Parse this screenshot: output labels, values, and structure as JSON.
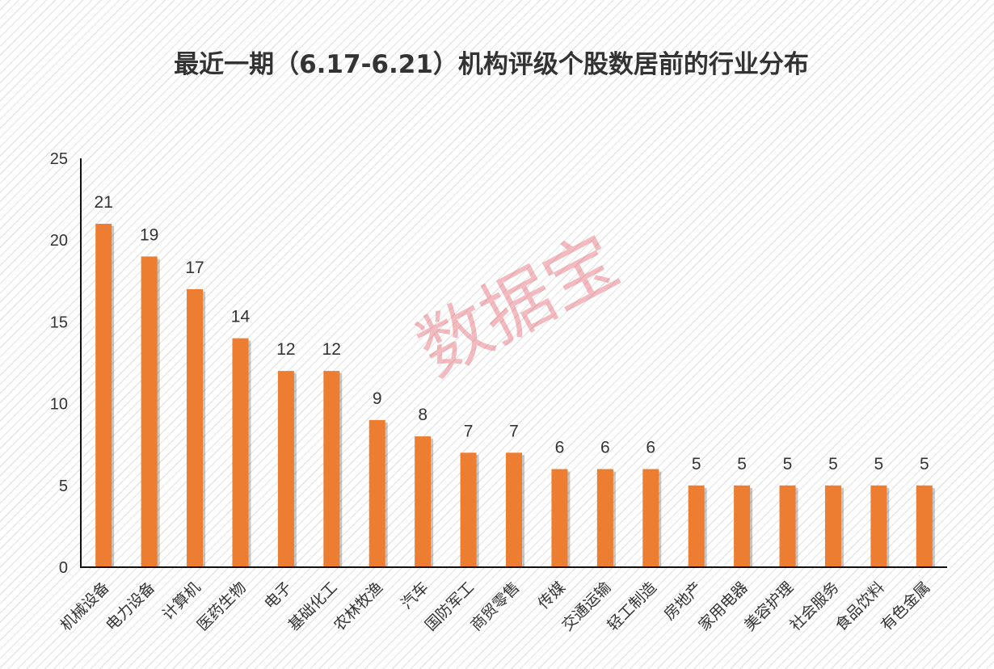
{
  "chart_data": {
    "type": "bar",
    "title": "最近一期（6.17-6.21）机构评级个股数居前的行业分布",
    "categories": [
      "机械设备",
      "电力设备",
      "计算机",
      "医药生物",
      "电子",
      "基础化工",
      "农林牧渔",
      "汽车",
      "国防军工",
      "商贸零售",
      "传媒",
      "交通运输",
      "轻工制造",
      "房地产",
      "家用电器",
      "美容护理",
      "社会服务",
      "食品饮料",
      "有色金属"
    ],
    "values": [
      21,
      19,
      17,
      14,
      12,
      12,
      9,
      8,
      7,
      7,
      6,
      6,
      6,
      5,
      5,
      5,
      5,
      5,
      5
    ],
    "ylim": [
      0,
      25
    ],
    "yticks": [
      0,
      5,
      10,
      15,
      20,
      25
    ],
    "xlabel": "",
    "ylabel": "",
    "grid": false,
    "data_labels": true,
    "bar_color": "#ed7d31"
  },
  "watermark": "数据宝"
}
